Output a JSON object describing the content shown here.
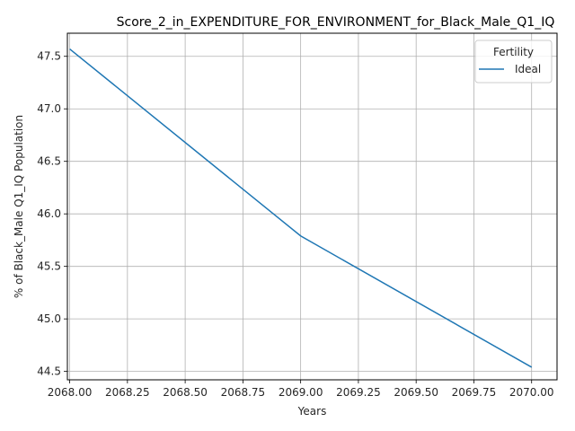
{
  "chart_data": {
    "type": "line",
    "title": "Score_2_in_EXPENDITURE_FOR_ENVIRONMENT_for_Black_Male_Q1_IQ",
    "xlabel": "Years",
    "ylabel": "% of Black_Male Q1_IQ Population",
    "xlim": [
      2067.99,
      2070.11
    ],
    "ylim": [
      44.42,
      47.72
    ],
    "x_ticks": [
      2068.0,
      2068.25,
      2068.5,
      2068.75,
      2069.0,
      2069.25,
      2069.5,
      2069.75,
      2070.0
    ],
    "x_tick_labels": [
      "2068.00",
      "2068.25",
      "2068.50",
      "2068.75",
      "2069.00",
      "2069.25",
      "2069.50",
      "2069.75",
      "2070.00"
    ],
    "y_ticks": [
      44.5,
      45.0,
      45.5,
      46.0,
      46.5,
      47.0,
      47.5
    ],
    "y_tick_labels": [
      "44.5",
      "45.0",
      "45.5",
      "46.0",
      "46.5",
      "47.0",
      "47.5"
    ],
    "grid": true,
    "legend": {
      "title": "Fertility",
      "placement": "top-right"
    },
    "series": [
      {
        "name": "Ideal",
        "color": "#1f77b4",
        "x": [
          2068,
          2069,
          2070
        ],
        "y": [
          47.57,
          45.79,
          44.54
        ]
      }
    ]
  }
}
